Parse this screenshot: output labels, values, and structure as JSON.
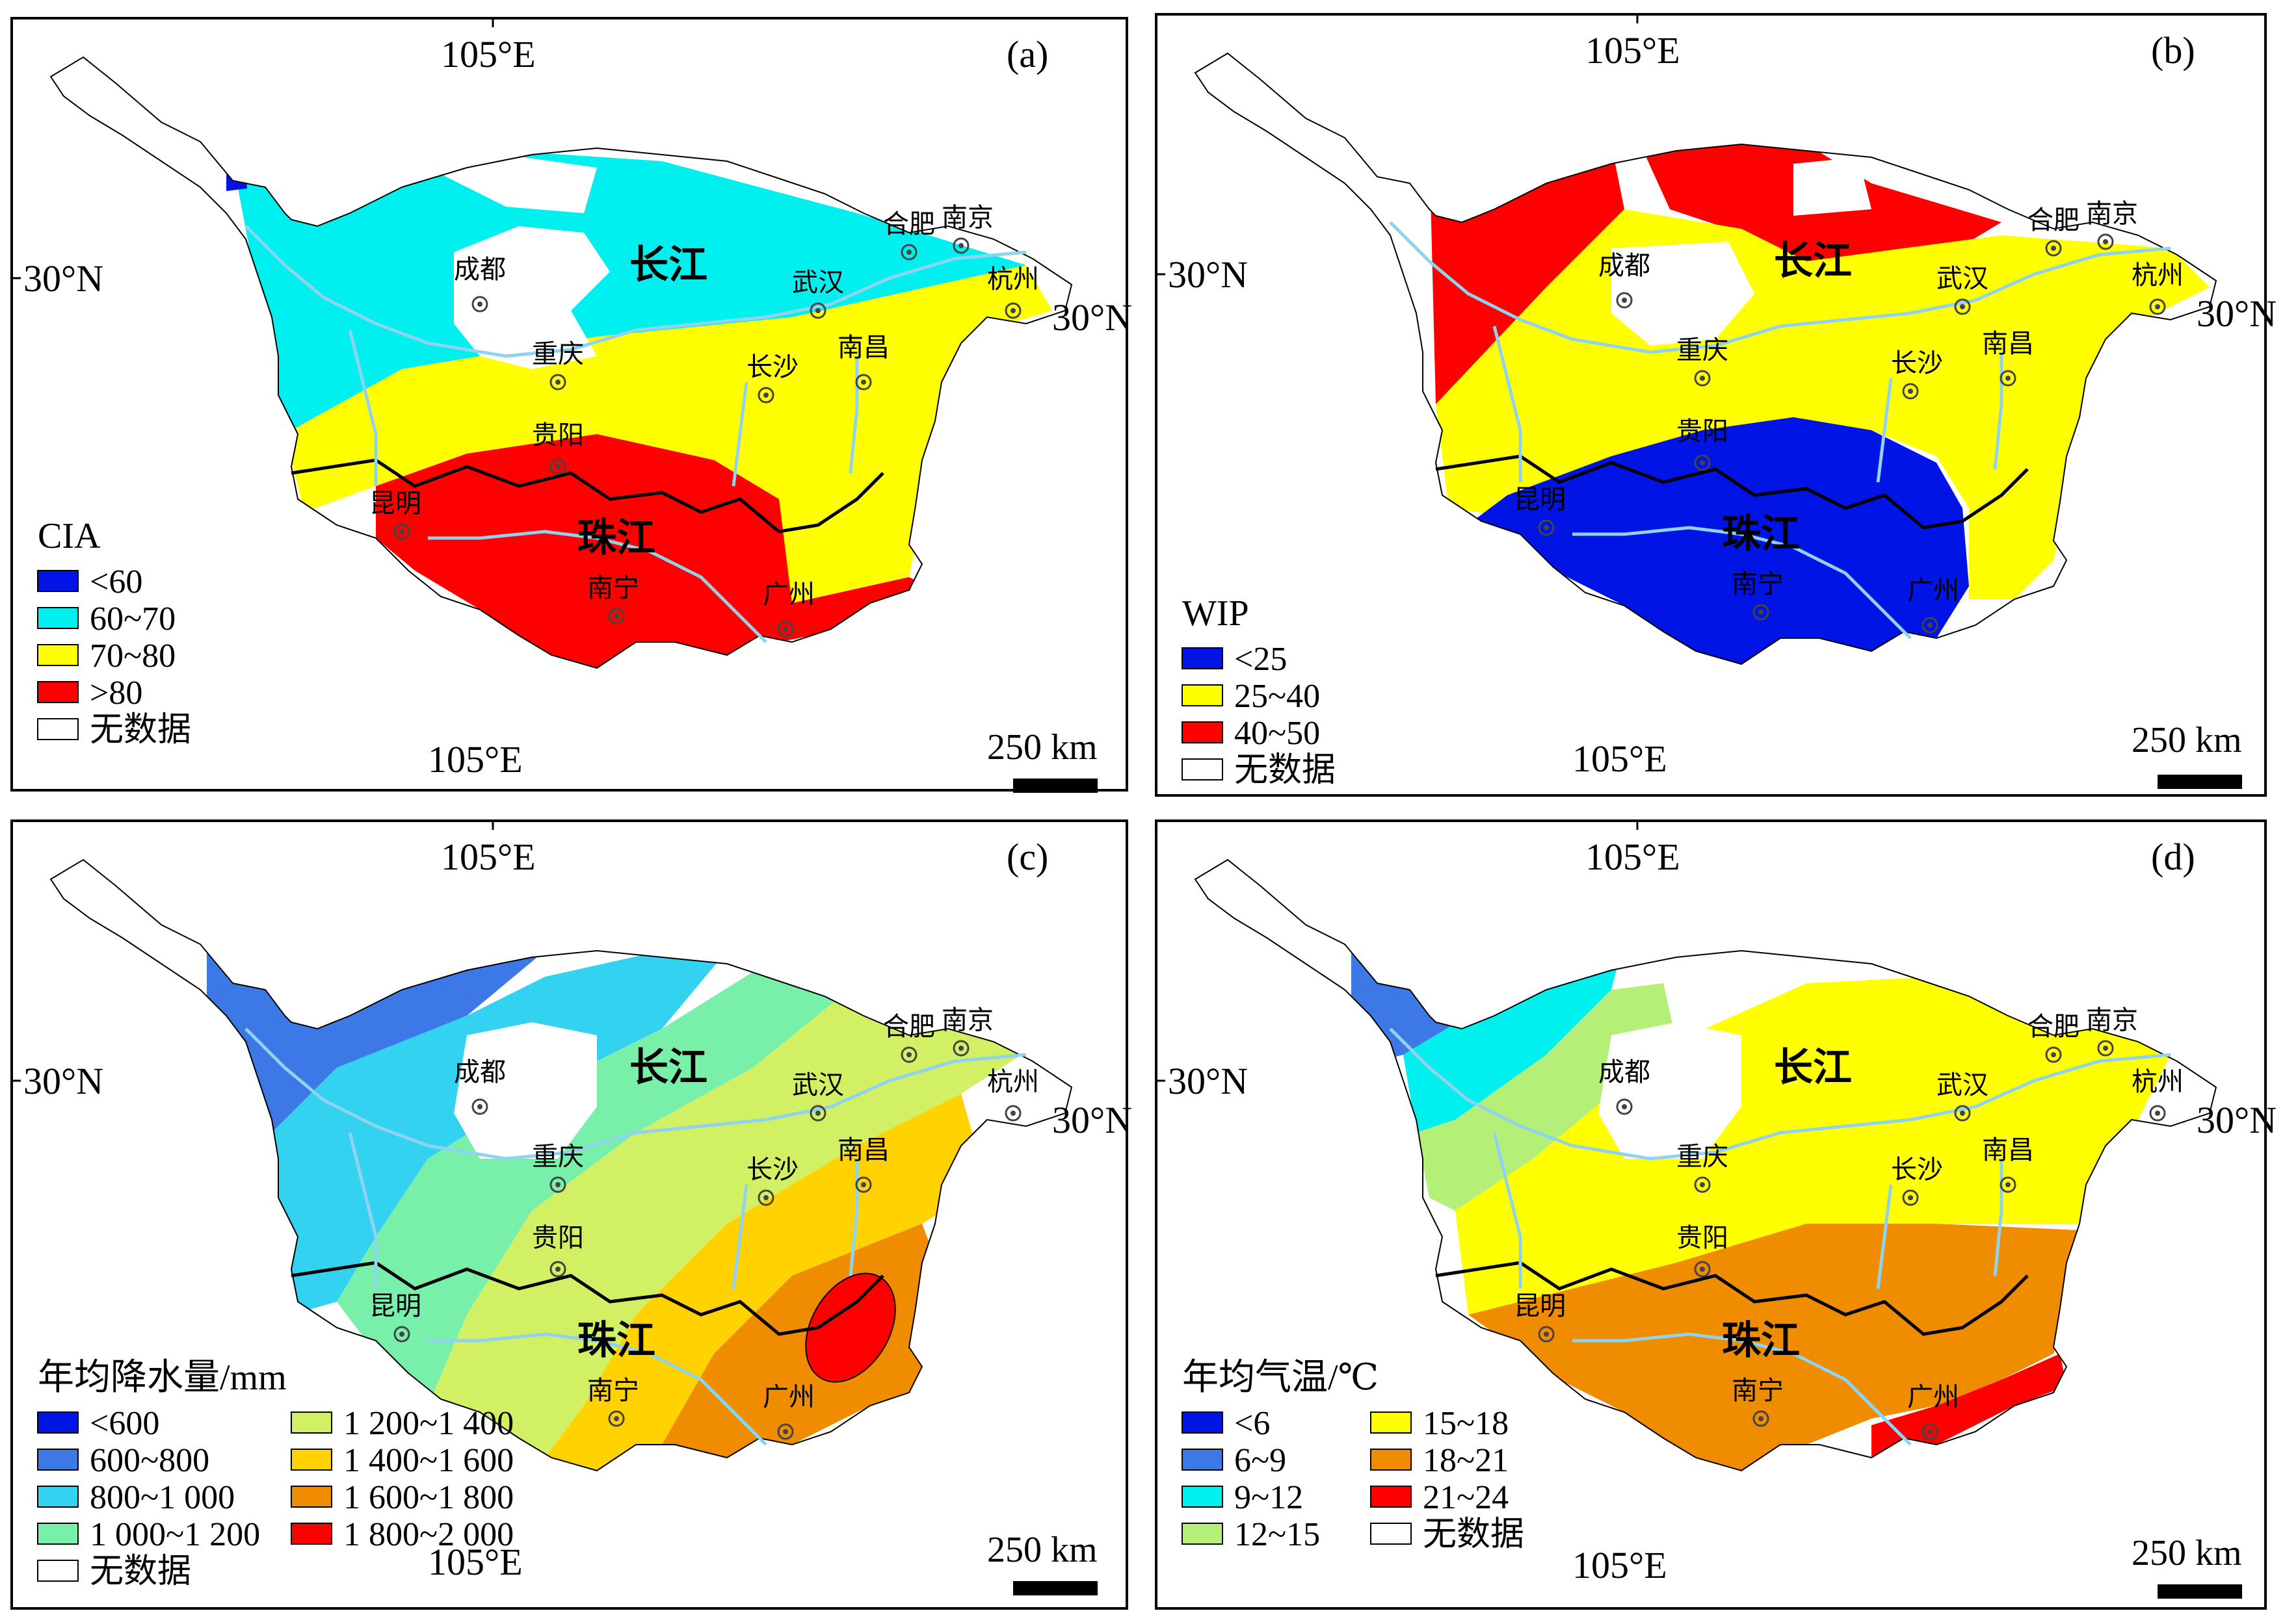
{
  "lon_label": "105°E",
  "lat_label": "30°N",
  "scale_label": "250 km",
  "panels": [
    {
      "tag": "(a)",
      "legend_title": "CIA",
      "legend": [
        {
          "label": "<60",
          "color": "#0014e6"
        },
        {
          "label": "60~70",
          "color": "#00f0f0"
        },
        {
          "label": "70~80",
          "color": "#ffff00"
        },
        {
          "label": ">80",
          "color": "#ff0000"
        },
        {
          "label": "无数据",
          "color": "#ffffff"
        }
      ]
    },
    {
      "tag": "(b)",
      "legend_title": "WIP",
      "legend": [
        {
          "label": "<25",
          "color": "#0014e6"
        },
        {
          "label": "25~40",
          "color": "#ffff00"
        },
        {
          "label": "40~50",
          "color": "#ff0000"
        },
        {
          "label": "无数据",
          "color": "#ffffff"
        }
      ]
    },
    {
      "tag": "(c)",
      "legend_title": "年均降水量/mm",
      "legend": [
        {
          "label": "<600",
          "color": "#0014e6"
        },
        {
          "label": "600~800",
          "color": "#3c78e6"
        },
        {
          "label": "800~1 000",
          "color": "#32d2f0"
        },
        {
          "label": "1 000~1 200",
          "color": "#78f0aa"
        },
        {
          "label": "无数据",
          "color": "#ffffff"
        },
        {
          "label": "1 200~1 400",
          "color": "#d2f064"
        },
        {
          "label": "1 400~1 600",
          "color": "#ffd200"
        },
        {
          "label": "1 600~1 800",
          "color": "#f08c00"
        },
        {
          "label": "1 800~2 000",
          "color": "#ff0000"
        }
      ]
    },
    {
      "tag": "(d)",
      "legend_title": "年均气温/℃",
      "legend": [
        {
          "label": "<6",
          "color": "#0014e6"
        },
        {
          "label": "6~9",
          "color": "#3c78e6"
        },
        {
          "label": "9~12",
          "color": "#00f0f0"
        },
        {
          "label": "12~15",
          "color": "#b4f078"
        },
        {
          "label": "15~18",
          "color": "#ffff00"
        },
        {
          "label": "18~21",
          "color": "#f08c00"
        },
        {
          "label": "21~24",
          "color": "#ff0000"
        },
        {
          "label": "无数据",
          "color": "#ffffff"
        }
      ]
    }
  ],
  "cities": [
    "成都",
    "重庆",
    "武汉",
    "合肥",
    "南京",
    "杭州",
    "长沙",
    "南昌",
    "贵阳",
    "昆明",
    "南宁",
    "广州"
  ],
  "rivers": [
    "长江",
    "珠江"
  ],
  "colors": {
    "frame": "#000000",
    "river": "#8fd3ee",
    "outline": "#000000"
  }
}
